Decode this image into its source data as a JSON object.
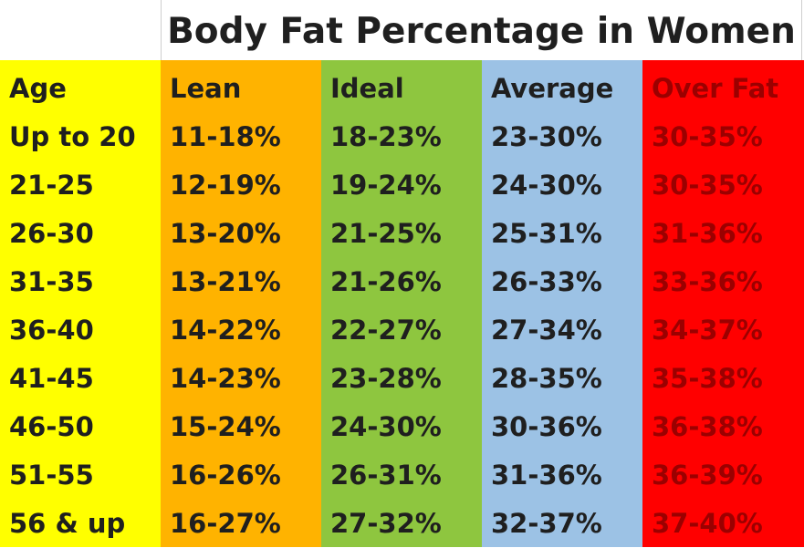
{
  "title": "Body Fat Percentage in Women",
  "colors": {
    "age": "#ffff00",
    "lean": "#ffb300",
    "ideal": "#8ec63f",
    "average": "#9cc2e5",
    "over_fat": "#ff0000",
    "over_fat_text": "#9b0000",
    "text": "#1f1f1f"
  },
  "table": {
    "headers": [
      "Age",
      "Lean",
      "Ideal",
      "Average",
      "Over Fat"
    ],
    "rows": [
      [
        "Up to 20",
        "11-18%",
        "18-23%",
        "23-30%",
        "30-35%"
      ],
      [
        "21-25",
        "12-19%",
        "19-24%",
        "24-30%",
        "30-35%"
      ],
      [
        "26-30",
        "13-20%",
        "21-25%",
        "25-31%",
        "31-36%"
      ],
      [
        "31-35",
        "13-21%",
        "21-26%",
        "26-33%",
        "33-36%"
      ],
      [
        "36-40",
        "14-22%",
        "22-27%",
        "27-34%",
        "34-37%"
      ],
      [
        "41-45",
        "14-23%",
        "23-28%",
        "28-35%",
        "35-38%"
      ],
      [
        "46-50",
        "15-24%",
        "24-30%",
        "30-36%",
        "36-38%"
      ],
      [
        "51-55",
        "16-26%",
        "26-31%",
        "31-36%",
        "36-39%"
      ],
      [
        "56 & up",
        "16-27%",
        "27-32%",
        "32-37%",
        "37-40%"
      ]
    ]
  }
}
